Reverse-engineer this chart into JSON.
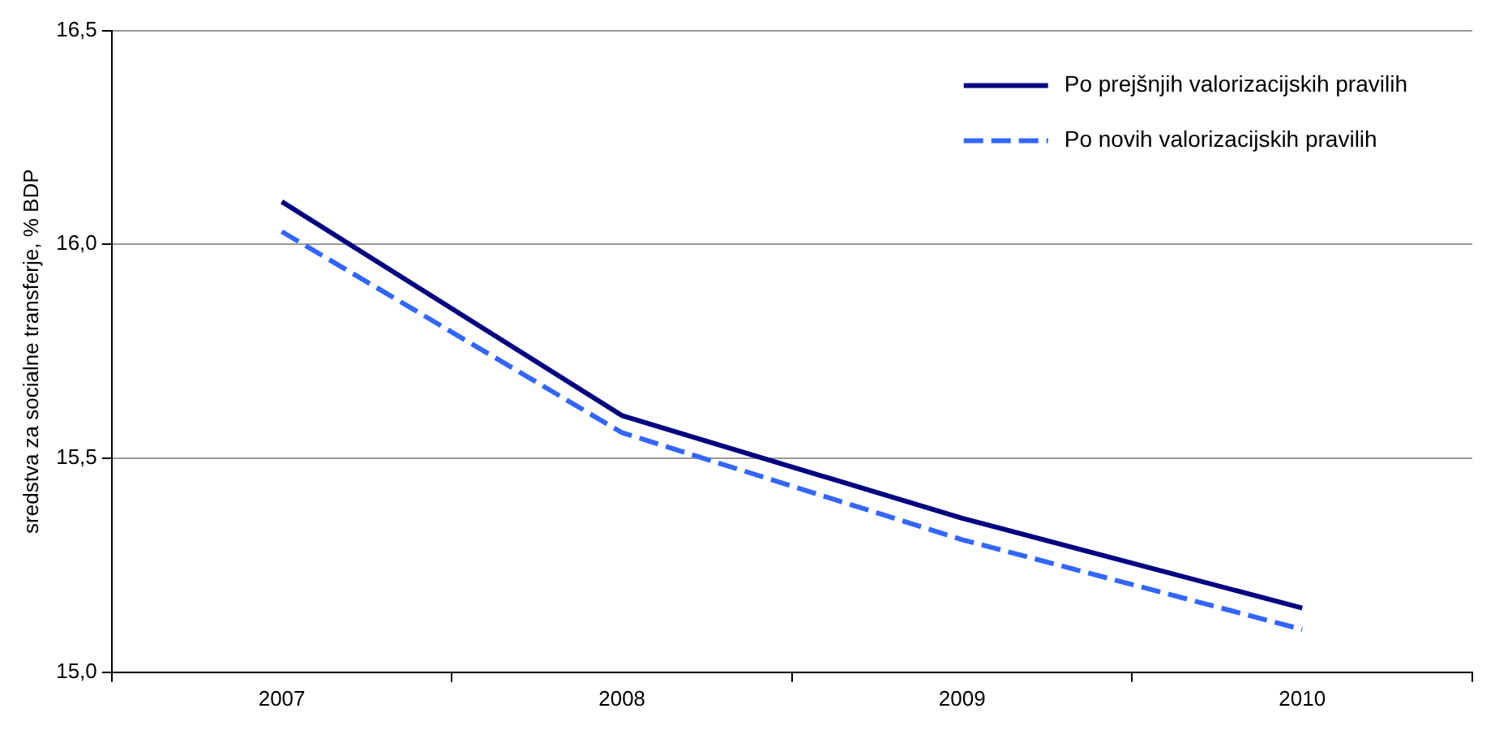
{
  "chart_data": {
    "type": "line",
    "ylabel": "sredstva za socialne transferje, % BDP",
    "categories": [
      "2007",
      "2008",
      "2009",
      "2010"
    ],
    "series": [
      {
        "name": "Po prejšnjih valorizacijskih pravilih",
        "color": "#000080",
        "line_style": "solid",
        "values": [
          16.1,
          15.6,
          15.36,
          15.15
        ]
      },
      {
        "name": "Po novih valorizacijskih pravilih",
        "color": "#3366ff",
        "line_style": "dashed",
        "values": [
          16.03,
          15.56,
          15.31,
          15.1
        ]
      }
    ],
    "ylim": [
      15,
      16.5
    ],
    "yticks": [
      {
        "value": 15,
        "label": "15,0"
      },
      {
        "value": 15.5,
        "label": "15,5"
      },
      {
        "value": 16,
        "label": "16,0"
      },
      {
        "value": 16.5,
        "label": "16,5"
      }
    ],
    "grid": "y",
    "legend": "top right",
    "marker": "none"
  }
}
